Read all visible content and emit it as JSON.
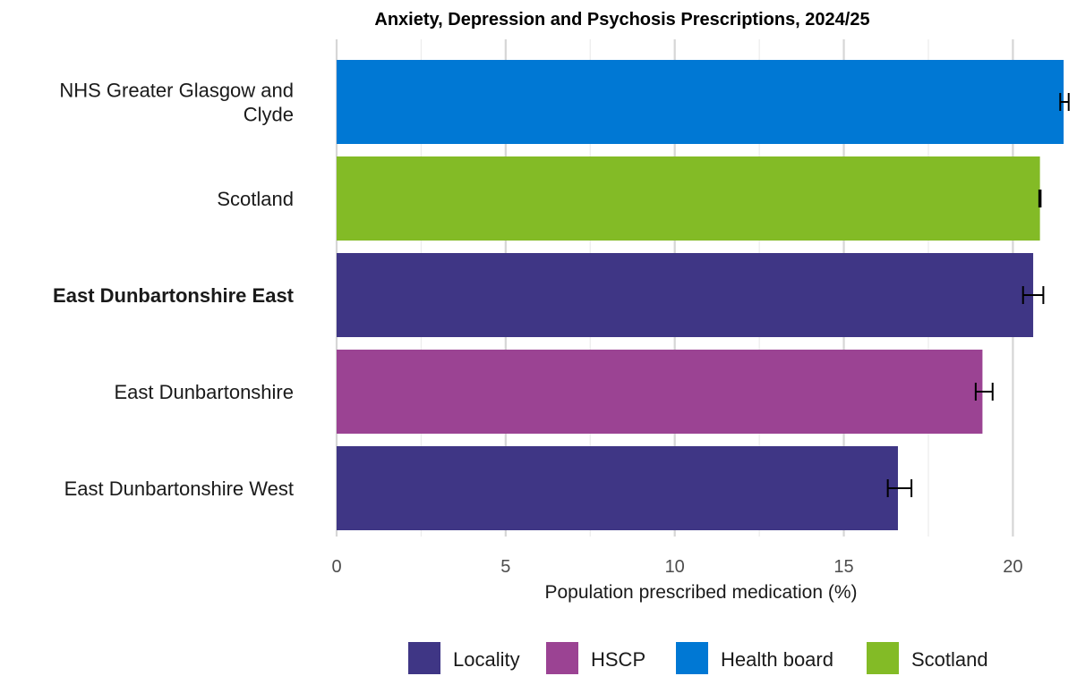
{
  "chart_data": {
    "type": "bar",
    "orientation": "horizontal",
    "title": "Anxiety, Depression and Psychosis Prescriptions, 2024/25",
    "xlabel": "Population prescribed medication (%)",
    "ylabel": "",
    "xlim": [
      0,
      21.5
    ],
    "xticks": [
      0,
      5,
      10,
      15,
      20
    ],
    "grid": true,
    "legend_position": "bottom",
    "highlight_category": "East Dunbartonshire East",
    "highlight_color": "#ff0000",
    "categories": [
      [
        "NHS Greater Glasgow and",
        "Clyde"
      ],
      [
        "Scotland"
      ],
      [
        "East Dunbartonshire East"
      ],
      [
        "East Dunbartonshire"
      ],
      [
        "East Dunbartonshire West"
      ]
    ],
    "values": [
      21.5,
      20.8,
      20.6,
      19.1,
      16.6
    ],
    "ci_lower": [
      21.4,
      20.78,
      20.3,
      18.9,
      16.3
    ],
    "ci_upper": [
      21.65,
      20.82,
      20.9,
      19.4,
      17.0
    ],
    "groups": [
      "Health board",
      "Scotland",
      "Locality",
      "HSCP",
      "Locality"
    ],
    "legend": [
      {
        "label": "Locality",
        "color": "#3f3685"
      },
      {
        "label": "HSCP",
        "color": "#9b4393"
      },
      {
        "label": "Health board",
        "color": "#0078d4"
      },
      {
        "label": "Scotland",
        "color": "#83bb26"
      }
    ]
  }
}
